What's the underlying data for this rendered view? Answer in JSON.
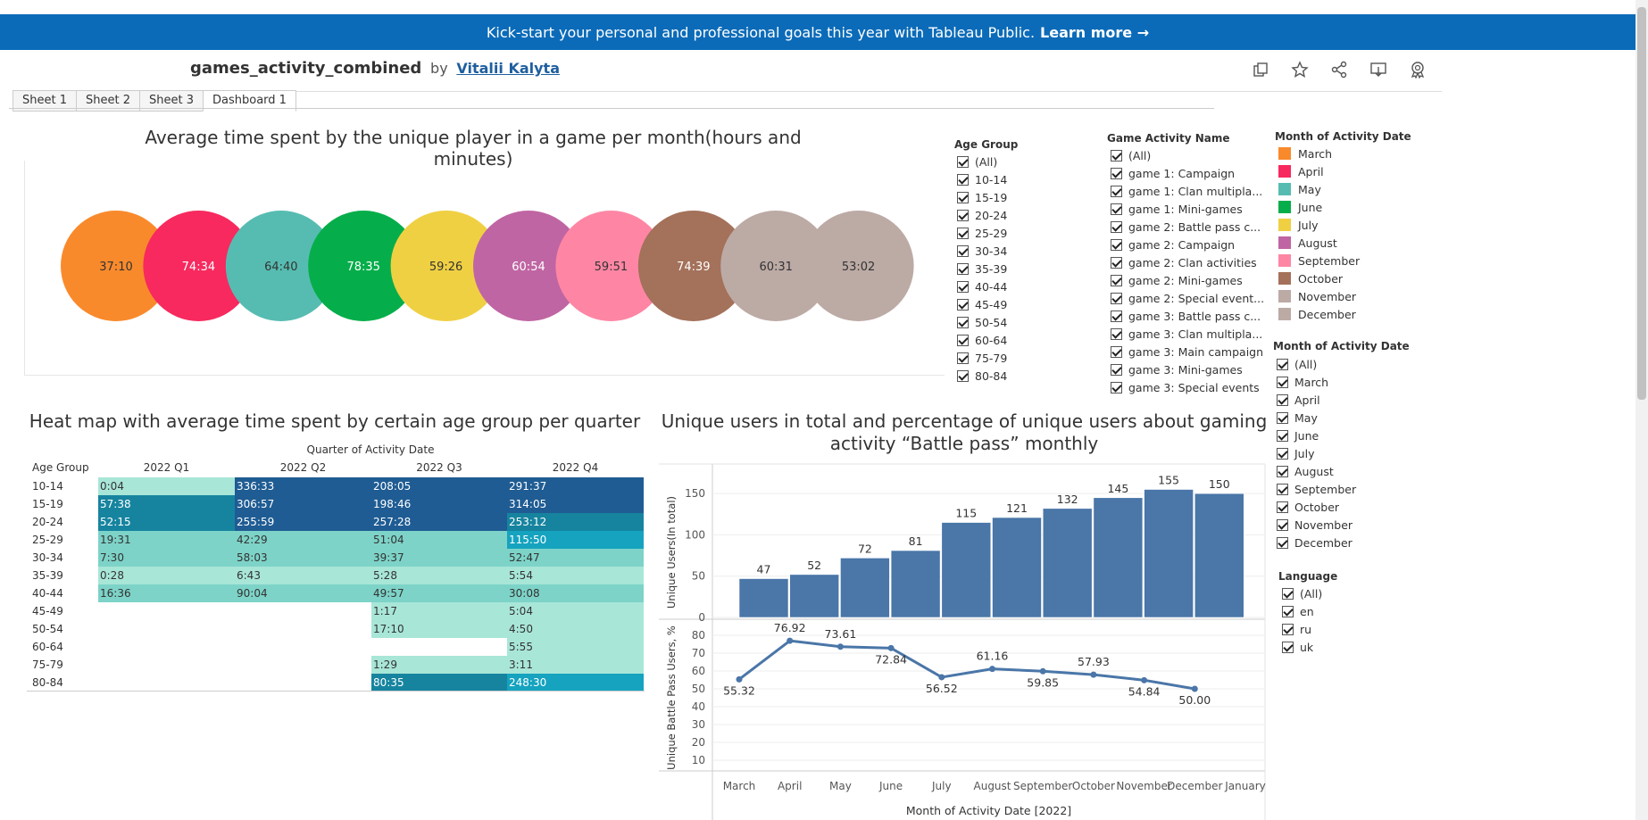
{
  "banner": {
    "text": "Kick-start your personal and professional goals this year with Tableau Public.",
    "link": "Learn more →"
  },
  "header": {
    "workbook": "games_activity_combined",
    "by": "by",
    "author": "Vitalii Kalyta"
  },
  "toolbar": {
    "icons": [
      "copy-icon",
      "star-icon",
      "share-icon",
      "download-icon",
      "badge-icon"
    ]
  },
  "tabs": [
    {
      "label": "Sheet 1",
      "active": false
    },
    {
      "label": "Sheet 2",
      "active": false
    },
    {
      "label": "Sheet 3",
      "active": false
    },
    {
      "label": "Dashboard 1",
      "active": true
    }
  ],
  "bubble_chart": {
    "title": "Average time spent by the unique player in a game per month(hours and minutes)"
  },
  "filters": {
    "age_group": {
      "title": "Age Group",
      "items": [
        "(All)",
        "10-14",
        "15-19",
        "20-24",
        "25-29",
        "30-34",
        "35-39",
        "40-44",
        "45-49",
        "50-54",
        "60-64",
        "75-79",
        "80-84"
      ]
    },
    "activity": {
      "title": "Game Activity Name",
      "items": [
        "(All)",
        "game 1: Campaign",
        "game 1: Clan multipla...",
        "game 1: Mini-games",
        "game 2: Battle pass c...",
        "game 2: Campaign",
        "game 2: Clan activities",
        "game 2: Mini-games",
        "game 2: Special event...",
        "game 3: Battle pass c...",
        "game 3: Clan multipla...",
        "game 3: Main campaign",
        "game 3: Mini-games",
        "game 3: Special events"
      ]
    },
    "month_legend": {
      "title": "Month of Activity Date",
      "items": [
        {
          "label": "March",
          "color": "#f98a2c"
        },
        {
          "label": "April",
          "color": "#f7295e"
        },
        {
          "label": "May",
          "color": "#56bcb1"
        },
        {
          "label": "June",
          "color": "#05ae4a"
        },
        {
          "label": "July",
          "color": "#f0d043"
        },
        {
          "label": "August",
          "color": "#c065a3"
        },
        {
          "label": "September",
          "color": "#fe86a4"
        },
        {
          "label": "October",
          "color": "#a4715a"
        },
        {
          "label": "November",
          "color": "#bcaaa5"
        },
        {
          "label": "December",
          "color": "#bcaaa5"
        }
      ]
    },
    "month_filter": {
      "title": "Month of Activity Date",
      "items": [
        "(All)",
        "March",
        "April",
        "May",
        "June",
        "July",
        "August",
        "September",
        "October",
        "November",
        "December"
      ]
    },
    "language": {
      "title": "Language",
      "items": [
        "(All)",
        "en",
        "ru",
        "uk"
      ]
    }
  },
  "heatmap": {
    "title": "Heat map with average time spent by certain age group per quarter",
    "col_header": "Quarter of Activity Date",
    "row_header": "Age Group"
  },
  "chart_data": [
    {
      "type": "scatter",
      "title": "Average time spent by the unique player in a game per month(hours and minutes)",
      "categories": [
        "March",
        "April",
        "May",
        "June",
        "July",
        "August",
        "September",
        "October",
        "November",
        "December"
      ],
      "labels": [
        "37:10",
        "74:34",
        "64:40",
        "78:35",
        "59:26",
        "60:54",
        "59:51",
        "74:39",
        "60:31",
        "53:02"
      ],
      "colors": [
        "#f98a2c",
        "#f7295e",
        "#56bcb1",
        "#05ae4a",
        "#f0d043",
        "#c065a3",
        "#fe86a4",
        "#a4715a",
        "#bcaaa5",
        "#bcaaa5"
      ],
      "label_colors": [
        "#333333",
        "#ffffff",
        "#333333",
        "#ffffff",
        "#333333",
        "#ffffff",
        "#333333",
        "#ffffff",
        "#333333",
        "#333333"
      ]
    },
    {
      "type": "heatmap",
      "title": "Heat map with average time spent by certain age group per quarter",
      "xlabel": "Quarter of Activity Date",
      "ylabel": "Age Group",
      "columns": [
        "2022 Q1",
        "2022 Q2",
        "2022 Q3",
        "2022 Q4"
      ],
      "rows": [
        "10-14",
        "15-19",
        "20-24",
        "25-29",
        "30-34",
        "35-39",
        "40-44",
        "45-49",
        "50-54",
        "60-64",
        "75-79",
        "80-84"
      ],
      "values": [
        [
          "0:04",
          "336:33",
          "208:05",
          "291:37"
        ],
        [
          "57:38",
          "306:57",
          "198:46",
          "314:05"
        ],
        [
          "52:15",
          "255:59",
          "257:28",
          "253:12"
        ],
        [
          "19:31",
          "42:29",
          "51:04",
          "115:50"
        ],
        [
          "7:30",
          "58:03",
          "39:37",
          "52:47"
        ],
        [
          "0:28",
          "6:43",
          "5:28",
          "5:54"
        ],
        [
          "16:36",
          "90:04",
          "49:57",
          "30:08"
        ],
        [
          "",
          "",
          "1:17",
          "5:04"
        ],
        [
          "",
          "",
          "17:10",
          "4:50"
        ],
        [
          "",
          "",
          "",
          "5:55"
        ],
        [
          "",
          "",
          "1:29",
          "3:11"
        ],
        [
          "",
          "",
          "80:35",
          "248:30"
        ]
      ],
      "cell_colors": [
        [
          "#a8e6d8",
          "#1f5c93",
          "#1f5c93",
          "#1f5c93"
        ],
        [
          "#16849f",
          "#1f5c93",
          "#1f5c93",
          "#1f5c93"
        ],
        [
          "#16849f",
          "#1f5c93",
          "#1f5c93",
          "#16849f"
        ],
        [
          "#7dd3c8",
          "#7dd3c8",
          "#7dd3c8",
          "#15a3bf"
        ],
        [
          "#7dd3c8",
          "#7dd3c8",
          "#7dd3c8",
          "#7dd3c8"
        ],
        [
          "#a8e6d8",
          "#a8e6d8",
          "#a8e6d8",
          "#a8e6d8"
        ],
        [
          "#7dd3c8",
          "#7dd3c8",
          "#7dd3c8",
          "#7dd3c8"
        ],
        [
          "",
          "",
          "#a8e6d8",
          "#a8e6d8"
        ],
        [
          "",
          "",
          "#a8e6d8",
          "#a8e6d8"
        ],
        [
          "",
          "",
          "#ffffff",
          "#a8e6d8"
        ],
        [
          "",
          "",
          "#a8e6d8",
          "#a8e6d8"
        ],
        [
          "",
          "",
          "#16849f",
          "#15a3bf"
        ]
      ]
    },
    {
      "type": "bar",
      "title": "Unique users in total and percentage of unique users about gaming activity “Battle pass” monthly",
      "ylabel": "Unique Users(In total)",
      "categories": [
        "March",
        "April",
        "May",
        "June",
        "July",
        "August",
        "September",
        "October",
        "November",
        "December"
      ],
      "values": [
        47,
        52,
        72,
        81,
        115,
        121,
        132,
        145,
        155,
        150
      ],
      "ylim": [
        0,
        175
      ],
      "yticks": [
        0,
        50,
        100,
        150
      ],
      "color": "#4a76a8"
    },
    {
      "type": "line",
      "ylabel": "Unique Battle Pass Users, %",
      "xlabel": "Month of Activity Date [2022]",
      "x_ticks": [
        "March",
        "April",
        "May",
        "June",
        "July",
        "August",
        "September",
        "October",
        "November",
        "December",
        "January"
      ],
      "categories": [
        "March",
        "April",
        "May",
        "June",
        "July",
        "August",
        "September",
        "October",
        "November",
        "December"
      ],
      "values": [
        55.32,
        76.92,
        73.61,
        72.84,
        56.52,
        61.16,
        59.85,
        57.93,
        54.84,
        50.0
      ],
      "value_labels": [
        "55.32",
        "76.92",
        "73.61",
        "72.84",
        "56.52",
        "61.16",
        "59.85",
        "57.93",
        "54.84",
        "50.00"
      ],
      "yticks": [
        10,
        20,
        30,
        40,
        50,
        60,
        70,
        80
      ],
      "color": "#4a76a8"
    }
  ]
}
